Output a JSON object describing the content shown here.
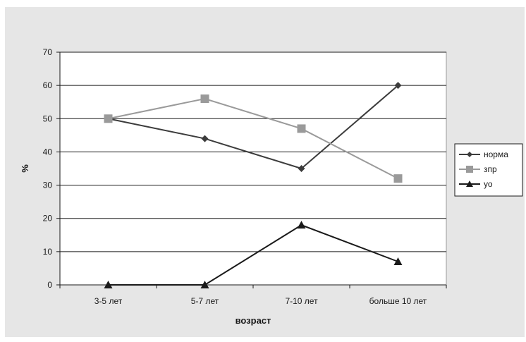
{
  "chart_data": {
    "type": "line",
    "title": "",
    "xlabel": "возраст",
    "ylabel": "%",
    "categories": [
      "3-5 лет",
      "5-7 лет",
      "7-10 лет",
      "больше 10 лет"
    ],
    "ylim": [
      0,
      70
    ],
    "yticks": [
      0,
      10,
      20,
      30,
      40,
      50,
      60,
      70
    ],
    "grid": true,
    "legend_position": "right",
    "series": [
      {
        "name": "норма",
        "values": [
          50,
          44,
          35,
          60
        ],
        "color": "#3c3c3c",
        "marker": "diamond"
      },
      {
        "name": "зпр",
        "values": [
          50,
          56,
          47,
          32
        ],
        "color": "#9a9a9a",
        "marker": "square"
      },
      {
        "name": "уо",
        "values": [
          0,
          0,
          18,
          7
        ],
        "color": "#1a1a1a",
        "marker": "triangle"
      }
    ],
    "colors": {
      "chart_area": "#e6e6e6",
      "plot_area": "#ffffff",
      "gridline": "#1a1a1a"
    }
  }
}
